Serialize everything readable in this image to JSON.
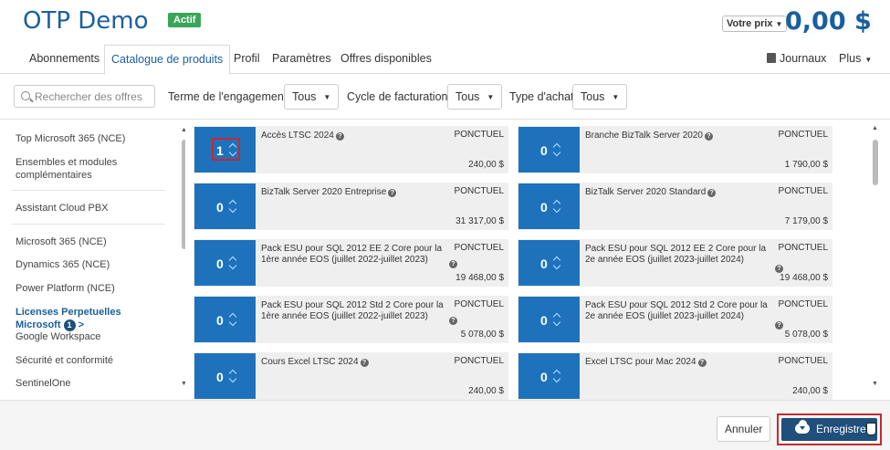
{
  "header": {
    "title": "OTP Demo",
    "status_badge": "Actif",
    "price_selector": "Votre prix",
    "balance": "0,00 $"
  },
  "tabs": [
    {
      "label": "Abonnements"
    },
    {
      "label": "Catalogue de produits"
    },
    {
      "label": "Profil"
    },
    {
      "label": "Paramètres"
    },
    {
      "label": "Offres disponibles"
    }
  ],
  "tabs_right": {
    "journaux": "Journaux",
    "plus": "Plus"
  },
  "filters": {
    "search_placeholder": "Rechercher des offres",
    "term_label": "Terme de l'engagement :",
    "term_value": "Tous",
    "billing_label": "Cycle de facturation :",
    "billing_value": "Tous",
    "purchase_label": "Type d'achat:",
    "purchase_value": "Tous"
  },
  "sidebar": {
    "items": [
      {
        "label": "Top Microsoft 365 (NCE)"
      },
      {
        "label": "Ensembles et modules complémentaires"
      },
      {
        "label": "Assistant Cloud PBX"
      },
      {
        "label": "Microsoft 365 (NCE)"
      },
      {
        "label": "Dynamics 365 (NCE)"
      },
      {
        "label": "Power Platform (NCE)"
      },
      {
        "label": "Licenses Perpetuelles Microsoft",
        "count": "1",
        "arrow": ">"
      },
      {
        "label": "Google Workspace"
      },
      {
        "label": "Sécurité et conformité"
      },
      {
        "label": "SentinelOne"
      }
    ]
  },
  "products": [
    {
      "qty": "1",
      "name": "Accès LTSC 2024",
      "type": "PONCTUEL",
      "price": "240,00 $"
    },
    {
      "qty": "0",
      "name": "Branche BizTalk Server 2020",
      "type": "PONCTUEL",
      "price": "1 790,00 $"
    },
    {
      "qty": "0",
      "name": "BizTalk Server 2020 Entreprise",
      "type": "PONCTUEL",
      "price": "31 317,00 $"
    },
    {
      "qty": "0",
      "name": "BizTalk Server 2020 Standard",
      "type": "PONCTUEL",
      "price": "7 179,00 $"
    },
    {
      "qty": "0",
      "name": "Pack ESU pour SQL 2012 EE 2 Core pour la 1ère année EOS (juillet 2022-juillet 2023)",
      "type": "PONCTUEL",
      "price": "19 468,00 $"
    },
    {
      "qty": "0",
      "name": "Pack ESU pour SQL 2012 EE 2 Core pour la 2e année EOS (juillet 2023-juillet 2024)",
      "type": "PONCTUEL",
      "price": "19 468,00 $"
    },
    {
      "qty": "0",
      "name": "Pack ESU pour SQL 2012 Std 2 Core pour la 1ère année EOS (juillet 2022-juillet 2023)",
      "type": "PONCTUEL",
      "price": "5 078,00 $"
    },
    {
      "qty": "0",
      "name": "Pack ESU pour SQL 2012 Std 2 Core pour la 2e année EOS (juillet 2023-juillet 2024)",
      "type": "PONCTUEL",
      "price": "5 078,00 $"
    },
    {
      "qty": "0",
      "name": "Cours Excel LTSC 2024",
      "type": "PONCTUEL",
      "price": "240,00 $"
    },
    {
      "qty": "0",
      "name": "Excel LTSC pour Mac 2024",
      "type": "PONCTUEL",
      "price": "240,00 $"
    }
  ],
  "footer": {
    "cancel_label": "Annuler",
    "save_label": "Enregistrer"
  },
  "colors": {
    "brand_blue": "#1a5f9e",
    "tile_blue": "#1e72bc",
    "status_green": "#3aa657",
    "save_button": "#1f4f7a",
    "highlight_red": "#c8282e"
  },
  "icons": [
    "search-icon",
    "book-icon",
    "chevron-down-icon",
    "spinner-icon",
    "help-icon",
    "cloud-upload-icon",
    "hand-cursor-icon"
  ]
}
